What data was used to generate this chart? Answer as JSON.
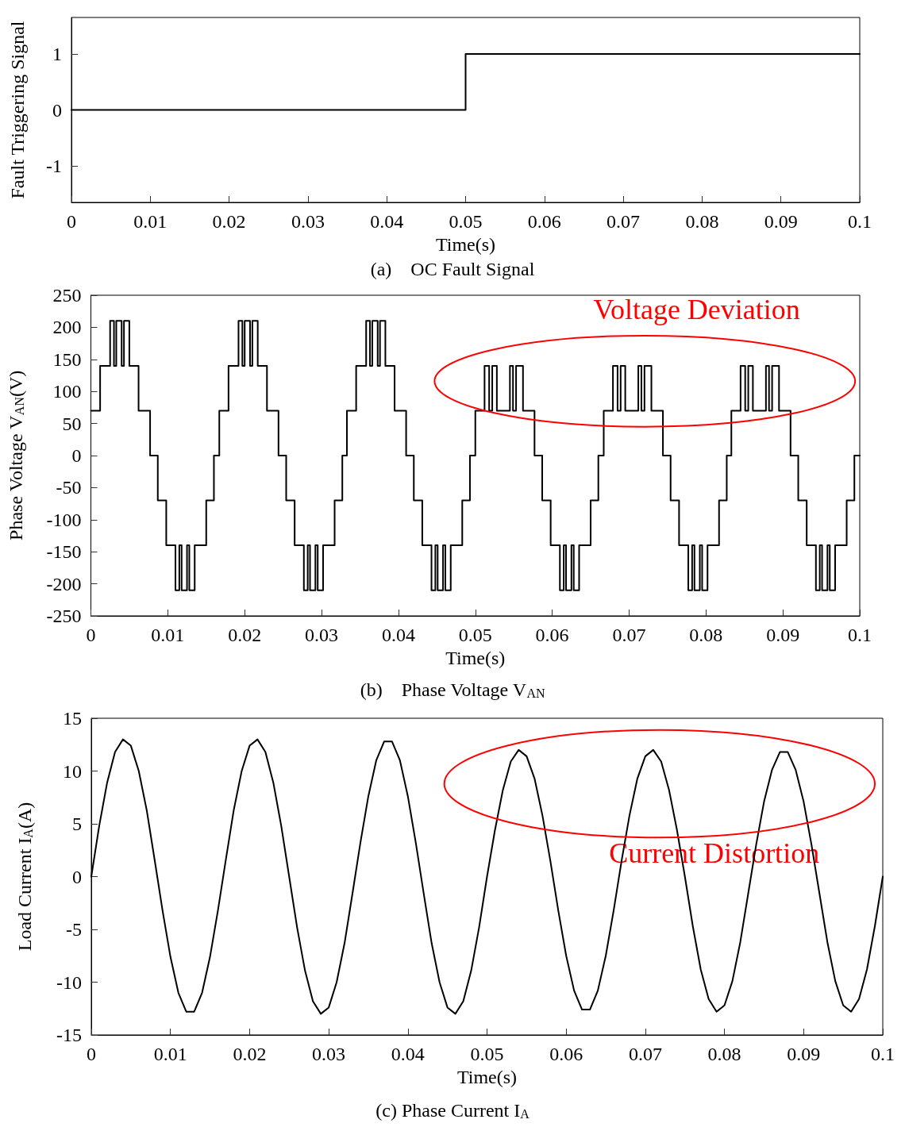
{
  "chart_data": [
    {
      "type": "step",
      "title": "(a)    OC Fault Signal",
      "xlabel": "Time(s)",
      "ylabel": "Fault Triggering Signal",
      "series": [
        {
          "color": "#000000",
          "x": [
            0,
            0.05,
            0.1
          ],
          "values": [
            0,
            1,
            1
          ]
        }
      ],
      "xlim": [
        0,
        0.1
      ],
      "xticks": [
        0,
        0.01,
        0.02,
        0.03,
        0.04,
        0.05,
        0.06,
        0.07,
        0.08,
        0.09,
        0.1
      ],
      "ylim": [
        -1.65,
        1.65
      ],
      "yticks": [
        -1,
        0,
        1
      ],
      "grid": false,
      "marker": "none",
      "line_style": "solid"
    },
    {
      "type": "step",
      "title": "(b)    Phase Voltage V$_{AN}$",
      "xlabel": "Time(s)",
      "ylabel": "Phase Voltage V$_{AN}$(V)",
      "annotations": [
        "Voltage Deviation"
      ],
      "series": [
        {
          "color": "#000000",
          "x": [
            0,
            0.0012,
            0.0025,
            0.003,
            0.0033,
            0.004,
            0.0043,
            0.005,
            0.0062,
            0.0077,
            0.0087,
            0.0098,
            0.011,
            0.0115,
            0.0118,
            0.0125,
            0.0128,
            0.0135,
            0.015,
            0.016,
            0.0167,
            0.0179,
            0.0192,
            0.0197,
            0.02,
            0.0207,
            0.021,
            0.0217,
            0.0229,
            0.0244,
            0.0254,
            0.0265,
            0.0277,
            0.0282,
            0.0285,
            0.0292,
            0.0295,
            0.0302,
            0.0317,
            0.0327,
            0.0333,
            0.0345,
            0.0358,
            0.0363,
            0.0366,
            0.0373,
            0.0376,
            0.0383,
            0.0395,
            0.041,
            0.042,
            0.0431,
            0.0443,
            0.0448,
            0.0451,
            0.0458,
            0.0461,
            0.0468,
            0.0483,
            0.0493,
            0.05,
            0.0512,
            0.0518,
            0.0522,
            0.0528,
            0.0545,
            0.0549,
            0.0553,
            0.0562,
            0.0577,
            0.0587,
            0.0598,
            0.061,
            0.0615,
            0.0618,
            0.0625,
            0.0628,
            0.0635,
            0.065,
            0.066,
            0.0667,
            0.0679,
            0.0685,
            0.0689,
            0.0695,
            0.0712,
            0.0716,
            0.072,
            0.0729,
            0.0744,
            0.0754,
            0.0765,
            0.0777,
            0.0782,
            0.0785,
            0.0792,
            0.0795,
            0.0802,
            0.0817,
            0.0827,
            0.0833,
            0.0845,
            0.0851,
            0.0855,
            0.0861,
            0.0878,
            0.0882,
            0.0886,
            0.0895,
            0.091,
            0.092,
            0.0931,
            0.0943,
            0.0948,
            0.0951,
            0.0958,
            0.0961,
            0.0968,
            0.0983,
            0.0993,
            0.1
          ],
          "values": [
            70,
            140,
            210,
            140,
            210,
            140,
            210,
            140,
            70,
            0,
            -70,
            -140,
            -210,
            -140,
            -210,
            -140,
            -210,
            -140,
            -70,
            0,
            70,
            140,
            210,
            140,
            210,
            140,
            210,
            140,
            70,
            0,
            -70,
            -140,
            -210,
            -140,
            -210,
            -140,
            -210,
            -140,
            -70,
            0,
            70,
            140,
            210,
            140,
            210,
            140,
            210,
            140,
            70,
            0,
            -70,
            -140,
            -210,
            -140,
            -210,
            -140,
            -210,
            -140,
            -70,
            0,
            70,
            140,
            70,
            140,
            70,
            140,
            70,
            140,
            70,
            0,
            -70,
            -140,
            -210,
            -140,
            -210,
            -140,
            -210,
            -140,
            -70,
            0,
            70,
            140,
            70,
            140,
            70,
            140,
            70,
            140,
            70,
            0,
            -70,
            -140,
            -210,
            -140,
            -210,
            -140,
            -210,
            -140,
            -70,
            0,
            70,
            140,
            70,
            140,
            70,
            140,
            70,
            140,
            70,
            0,
            -70,
            -140,
            -210,
            -140,
            -210,
            -140,
            -210,
            -140,
            -70,
            0,
            0
          ]
        }
      ],
      "xlim": [
        0,
        0.1
      ],
      "xticks": [
        0,
        0.01,
        0.02,
        0.03,
        0.04,
        0.05,
        0.06,
        0.07,
        0.08,
        0.09,
        0.1
      ],
      "ylim": [
        -250,
        250
      ],
      "yticks": [
        -250,
        -200,
        -150,
        -100,
        -50,
        0,
        50,
        100,
        150,
        200,
        250
      ],
      "grid": false,
      "marker": "none",
      "line_style": "solid"
    },
    {
      "type": "line",
      "title": "(c) Phase Current I$_{A}$",
      "xlabel": "Time(s)",
      "ylabel": "Load Current I$_{A}$(A)",
      "annotations": [
        "Current Distortion"
      ],
      "series": [
        {
          "color": "#000000",
          "x": [
            0,
            0.001,
            0.002,
            0.003,
            0.004,
            0.005,
            0.006,
            0.007,
            0.008,
            0.009,
            0.01,
            0.011,
            0.012,
            0.013,
            0.014,
            0.015,
            0.016,
            0.017,
            0.018,
            0.019,
            0.02,
            0.021,
            0.022,
            0.023,
            0.024,
            0.025,
            0.026,
            0.027,
            0.028,
            0.029,
            0.03,
            0.031,
            0.032,
            0.033,
            0.034,
            0.035,
            0.036,
            0.037,
            0.038,
            0.039,
            0.04,
            0.041,
            0.042,
            0.043,
            0.044,
            0.045,
            0.046,
            0.047,
            0.048,
            0.049,
            0.05,
            0.051,
            0.052,
            0.053,
            0.054,
            0.055,
            0.056,
            0.057,
            0.058,
            0.059,
            0.06,
            0.061,
            0.062,
            0.063,
            0.064,
            0.065,
            0.066,
            0.067,
            0.068,
            0.069,
            0.07,
            0.071,
            0.072,
            0.073,
            0.074,
            0.075,
            0.076,
            0.077,
            0.078,
            0.079,
            0.08,
            0.081,
            0.082,
            0.083,
            0.084,
            0.085,
            0.086,
            0.087,
            0.088,
            0.089,
            0.09,
            0.091,
            0.092,
            0.093,
            0.094,
            0.095,
            0.096,
            0.097,
            0.098,
            0.099,
            0.1
          ],
          "values": [
            0,
            4.8,
            8.9,
            11.8,
            13.0,
            12.4,
            10.0,
            6.3,
            1.6,
            -3.2,
            -7.6,
            -11.0,
            -12.8,
            -12.8,
            -11.0,
            -7.6,
            -3.2,
            1.6,
            6.3,
            10.0,
            12.4,
            13.0,
            11.8,
            8.9,
            4.8,
            0,
            -4.8,
            -8.9,
            -11.8,
            -13.0,
            -12.4,
            -10.0,
            -6.3,
            -1.6,
            3.2,
            7.6,
            11.0,
            12.8,
            12.8,
            11.0,
            7.6,
            3.2,
            -1.6,
            -6.3,
            -10.0,
            -12.4,
            -13.0,
            -11.8,
            -8.9,
            -4.8,
            0,
            4.4,
            8.2,
            10.9,
            12.0,
            11.4,
            9.3,
            5.8,
            1.5,
            -3.2,
            -7.5,
            -10.8,
            -12.6,
            -12.6,
            -10.8,
            -7.5,
            -3.2,
            1.5,
            5.8,
            9.3,
            11.4,
            12.0,
            10.9,
            8.2,
            4.4,
            0,
            -4.7,
            -8.8,
            -11.6,
            -12.8,
            -12.2,
            -9.9,
            -6.2,
            -1.6,
            3.0,
            7.1,
            10.1,
            11.8,
            11.8,
            10.1,
            7.1,
            3.0,
            -1.6,
            -6.2,
            -9.9,
            -12.2,
            -12.8,
            -11.6,
            -8.8,
            -4.7,
            0
          ]
        }
      ],
      "xlim": [
        0,
        0.1
      ],
      "xticks": [
        0,
        0.01,
        0.02,
        0.03,
        0.04,
        0.05,
        0.06,
        0.07,
        0.08,
        0.09,
        0.1
      ],
      "ylim": [
        -15,
        15
      ],
      "yticks": [
        -15,
        -10,
        -5,
        0,
        5,
        10,
        15
      ],
      "grid": false,
      "marker": "none",
      "line_style": "solid"
    }
  ]
}
